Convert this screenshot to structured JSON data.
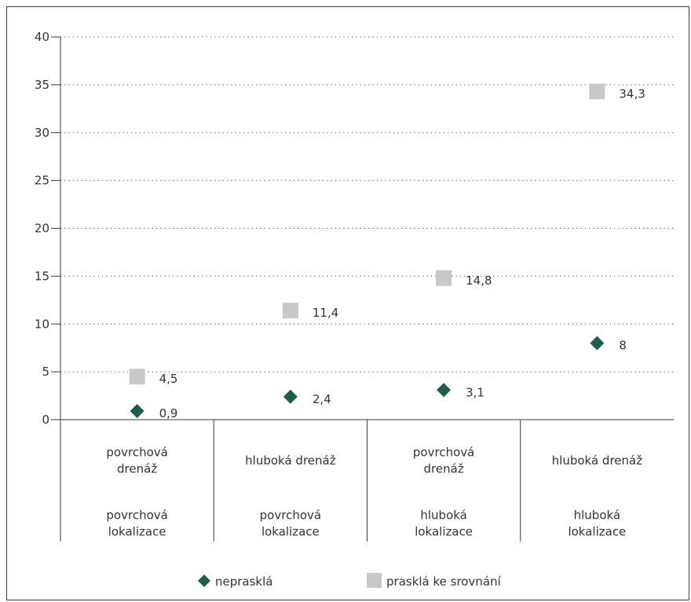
{
  "chart_data": {
    "type": "scatter",
    "ylim": [
      0,
      40
    ],
    "yticks": [
      0,
      5,
      10,
      15,
      20,
      25,
      30,
      35,
      40
    ],
    "grid": "horizontal-dotted",
    "legend_position": "bottom",
    "categories": [
      {
        "drainage": [
          "povrchová",
          "drenáž"
        ],
        "localization": [
          "povrchová",
          "lokalizace"
        ]
      },
      {
        "drainage": [
          "hluboká drenáž"
        ],
        "localization": [
          "povrchová",
          "lokalizace"
        ]
      },
      {
        "drainage": [
          "povrchová",
          "drenáž"
        ],
        "localization": [
          "hluboká",
          "lokalizace"
        ]
      },
      {
        "drainage": [
          "hluboká drenáž"
        ],
        "localization": [
          "hluboká",
          "lokalizace"
        ]
      }
    ],
    "series": [
      {
        "name": "nepraskla",
        "label": "neprasklá",
        "marker": "diamond",
        "color": "#1b5e4e",
        "values": [
          0.9,
          2.4,
          3.1,
          8
        ],
        "labels": [
          "0,9",
          "2,4",
          "3,1",
          "8"
        ]
      },
      {
        "name": "praskla",
        "label": "prasklá ke srovnání",
        "marker": "square",
        "color": "#c8c8c8",
        "values": [
          4.5,
          11.4,
          14.8,
          34.3
        ],
        "labels": [
          "4,5",
          "11,4",
          "14,8",
          "34,3"
        ]
      }
    ]
  }
}
